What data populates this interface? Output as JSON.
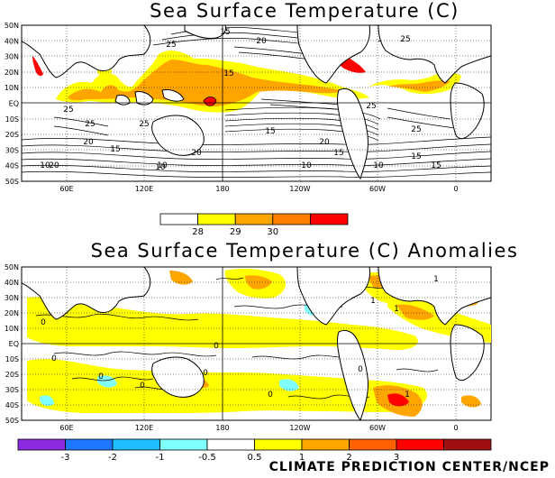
{
  "top_panel": {
    "title": "Sea Surface Temperature (C)",
    "lat_labels": [
      "50N",
      "40N",
      "30N",
      "20N",
      "10N",
      "EQ",
      "10S",
      "20S",
      "30S",
      "40S",
      "50S"
    ],
    "lon_labels": [
      "60E",
      "120E",
      "180",
      "120W",
      "60W",
      "0"
    ],
    "contour_labels": [
      "15",
      "20",
      "25",
      "25",
      "25",
      "15",
      "25",
      "25",
      "20",
      "20",
      "15",
      "15",
      "10",
      "10",
      "10",
      "15",
      "20",
      "20",
      "25",
      "25",
      "15",
      "10",
      "15",
      "10"
    ],
    "colorbar": {
      "labels": [
        "28",
        "29",
        "30"
      ],
      "colors": [
        "#ffffff",
        "#ffff00",
        "#ffa500",
        "#ff7f00",
        "#ff0000"
      ]
    }
  },
  "bottom_panel": {
    "title": "Sea Surface Temperature (C) Anomalies",
    "lat_labels": [
      "50N",
      "40N",
      "30N",
      "20N",
      "10N",
      "EQ",
      "10S",
      "20S",
      "30S",
      "40S",
      "50S"
    ],
    "lon_labels": [
      "60E",
      "120E",
      "180",
      "120W",
      "60W",
      "0"
    ],
    "contour_labels": [
      "1",
      "1",
      "1",
      "0",
      "0",
      "0",
      "0",
      "0",
      "0",
      "1",
      "0",
      "0"
    ],
    "colorbar": {
      "labels": [
        "-3",
        "-2",
        "-1",
        "-0.5",
        "0.5",
        "1",
        "2",
        "3"
      ],
      "colors": [
        "#8a2be2",
        "#1e78ff",
        "#1ebeff",
        "#7fffff",
        "#ffffff",
        "#ffff00",
        "#ffa500",
        "#ff6000",
        "#ff0000",
        "#a01010"
      ]
    }
  },
  "footer": "CLIMATE PREDICTION CENTER/NCEP"
}
